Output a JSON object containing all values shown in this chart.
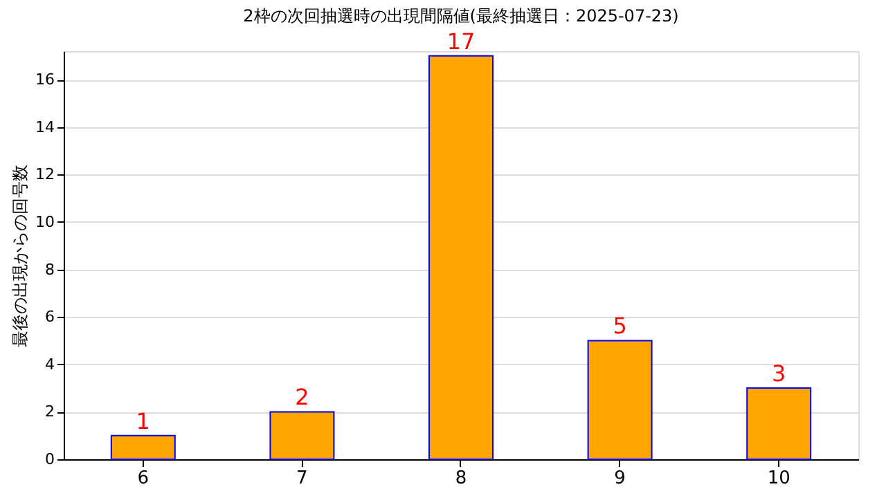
{
  "chart_data": {
    "type": "bar",
    "title": "2枠の次回抽選時の出現間隔値(最終抽選日：2025-07-23)",
    "ylabel": "最後の出現からの回号数",
    "categories": [
      "6",
      "7",
      "8",
      "9",
      "10"
    ],
    "series": [
      {
        "color": "#ffa500",
        "values": [
          1,
          2,
          17,
          5,
          3
        ]
      }
    ],
    "ylim": [
      0,
      17.2
    ],
    "yticks": [
      0,
      2,
      4,
      6,
      8,
      10,
      12,
      14,
      16
    ],
    "grid": "y",
    "data_labels": true
  }
}
